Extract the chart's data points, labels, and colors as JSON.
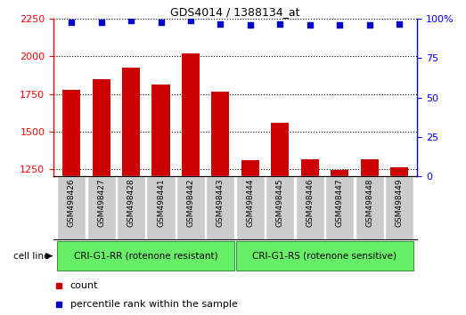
{
  "title": "GDS4014 / 1388134_at",
  "samples": [
    "GSM498426",
    "GSM498427",
    "GSM498428",
    "GSM498441",
    "GSM498442",
    "GSM498443",
    "GSM498444",
    "GSM498445",
    "GSM498446",
    "GSM498447",
    "GSM498448",
    "GSM498449"
  ],
  "counts": [
    1775,
    1850,
    1925,
    1810,
    2020,
    1765,
    1310,
    1560,
    1315,
    1245,
    1315,
    1260
  ],
  "percentile_ranks": [
    98,
    98,
    99,
    98,
    99,
    97,
    96,
    97,
    96,
    96,
    96,
    97
  ],
  "bar_color": "#cc0000",
  "dot_color": "#0000cc",
  "ylim_left": [
    1200,
    2250
  ],
  "ylim_right": [
    0,
    100
  ],
  "yticks_left": [
    1250,
    1500,
    1750,
    2000,
    2250
  ],
  "yticks_right": [
    0,
    25,
    50,
    75,
    100
  ],
  "ytick_right_labels": [
    "0",
    "25",
    "50",
    "75",
    "100%"
  ],
  "group1_label": "CRI-G1-RR (rotenone resistant)",
  "group2_label": "CRI-G1-RS (rotenone sensitive)",
  "group1_count": 6,
  "group2_count": 6,
  "cell_line_label": "cell line",
  "legend_count_label": "count",
  "legend_percentile_label": "percentile rank within the sample",
  "group_color": "#66ee66",
  "xticklabel_bg": "#cccccc",
  "fig_width": 5.23,
  "fig_height": 3.54,
  "dpi": 100
}
